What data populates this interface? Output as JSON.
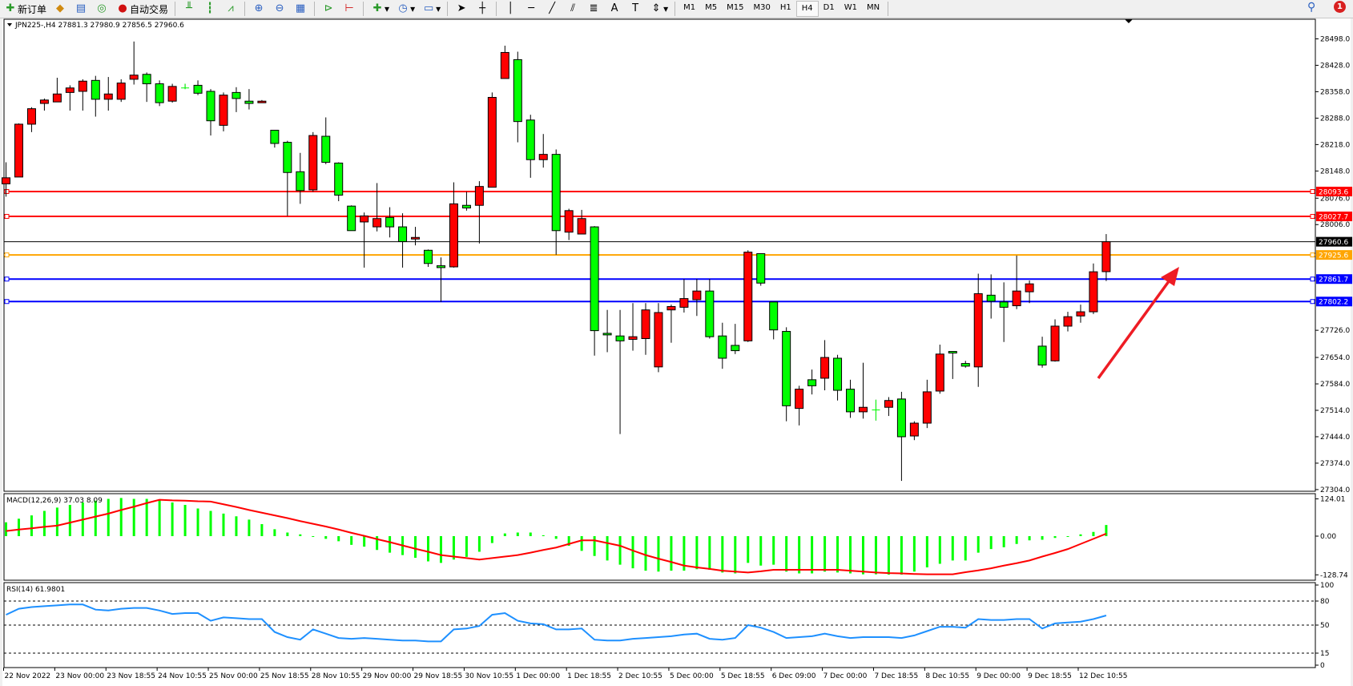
{
  "toolbar": {
    "new_order_label": "新订单",
    "auto_trade_label": "自动交易",
    "timeframes": [
      "M1",
      "M5",
      "M15",
      "M30",
      "H1",
      "H4",
      "D1",
      "W1",
      "MN"
    ],
    "active_timeframe": "H4",
    "notification_count": "1",
    "icons": [
      "new-order-icon",
      "market-watch-icon",
      "data-window-icon",
      "signals-icon",
      "auto-trade-icon",
      "bar-chart-icon",
      "candlestick-icon",
      "line-chart-icon",
      "zoom-in-icon",
      "zoom-out-icon",
      "tile-windows-icon",
      "auto-scroll-icon",
      "chart-shift-icon",
      "indicators-icon",
      "periods-icon",
      "templates-icon",
      "cursor-icon",
      "crosshair-icon",
      "vertical-line-icon",
      "horizontal-line-icon",
      "trendline-icon",
      "equidistant-channel-icon",
      "fibonacci-icon",
      "text-icon",
      "text-label-icon",
      "arrows-icon",
      "search-icon"
    ]
  },
  "chart": {
    "title": "JPN225-,H4  27881.3 27980.9 27856.5 27960.6",
    "colors": {
      "bull": "#ff0000",
      "bear": "#00ff00",
      "background": "#ffffff",
      "wick": "#000000"
    },
    "price_ticks": [
      "28498.0",
      "28428.0",
      "28358.0",
      "28288.0",
      "28218.0",
      "28148.0",
      "28076.0",
      "28006.0",
      "27726.0",
      "27654.0",
      "27584.0",
      "27514.0",
      "27444.0",
      "27374.0",
      "27304.0"
    ],
    "price_lines": [
      {
        "price": 28093.6,
        "label": "28093.6",
        "color": "#ff0000"
      },
      {
        "price": 28027.7,
        "label": "28027.7",
        "color": "#ff0000"
      },
      {
        "price": 27960.6,
        "label": "27960.6",
        "color": "#000000"
      },
      {
        "price": 27925.6,
        "label": "27925.6",
        "color": "#ffa500"
      },
      {
        "price": 27861.7,
        "label": "27861.7",
        "color": "#0000ff"
      },
      {
        "price": 27802.2,
        "label": "27802.2",
        "color": "#0000ff"
      }
    ],
    "arrow_color": "#ee1c24",
    "time_labels": [
      "22 Nov 2022",
      "23 Nov 00:00",
      "23 Nov 18:55",
      "24 Nov 10:55",
      "25 Nov 00:00",
      "25 Nov 18:55",
      "28 Nov 10:55",
      "29 Nov 00:00",
      "29 Nov 18:55",
      "30 Nov 10:55",
      "1 Dec 00:00",
      "1 Dec 18:55",
      "2 Dec 10:55",
      "5 Dec 00:00",
      "5 Dec 18:55",
      "6 Dec 09:00",
      "7 Dec 00:00",
      "7 Dec 18:55",
      "8 Dec 10:55",
      "9 Dec 00:00",
      "9 Dec 18:55",
      "12 Dec 10:55"
    ]
  },
  "chart_data": [
    {
      "type": "candlestick",
      "symbol": "JPN225-",
      "timeframe": "H4",
      "ylim": [
        27304,
        28498
      ],
      "ohlc": [
        [
          28114,
          28171,
          28080,
          28130
        ],
        [
          28132,
          28274,
          28132,
          28272
        ],
        [
          28272,
          28317,
          28251,
          28313
        ],
        [
          28327,
          28340,
          28308,
          28336
        ],
        [
          28331,
          28395,
          28331,
          28352
        ],
        [
          28356,
          28375,
          28308,
          28368
        ],
        [
          28359,
          28391,
          28308,
          28386
        ],
        [
          28388,
          28400,
          28292,
          28338
        ],
        [
          28338,
          28397,
          28308,
          28352
        ],
        [
          28338,
          28391,
          28331,
          28381
        ],
        [
          28391,
          28491,
          28377,
          28402
        ],
        [
          28404,
          28409,
          28331,
          28379
        ],
        [
          28379,
          28388,
          28320,
          28329
        ],
        [
          28333,
          28379,
          28329,
          28372
        ],
        [
          28368,
          28379,
          28365,
          28368
        ],
        [
          28375,
          28388,
          28349,
          28354
        ],
        [
          28359,
          28365,
          28242,
          28281
        ],
        [
          28269,
          28356,
          28253,
          28349
        ],
        [
          28356,
          28370,
          28304,
          28340
        ],
        [
          28333,
          28365,
          28311,
          28327
        ],
        [
          28329,
          28336,
          28329,
          28333
        ],
        [
          28256,
          28256,
          28210,
          28221
        ],
        [
          28224,
          28228,
          28029,
          28144
        ],
        [
          28146,
          28196,
          28061,
          28096
        ],
        [
          28098,
          28251,
          28093,
          28242
        ],
        [
          28240,
          28290,
          28166,
          28171
        ],
        [
          28169,
          28171,
          28068,
          28084
        ],
        [
          28055,
          28057,
          27990,
          27990
        ],
        [
          28013,
          28038,
          27892,
          28029
        ],
        [
          28000,
          28116,
          27988,
          28022
        ],
        [
          28025,
          28052,
          27972,
          28000
        ],
        [
          28000,
          28036,
          27892,
          27961
        ],
        [
          27968,
          28000,
          27951,
          27972
        ],
        [
          27938,
          27940,
          27894,
          27903
        ],
        [
          27897,
          27919,
          27801,
          27892
        ],
        [
          27894,
          28118,
          27892,
          28061
        ],
        [
          28057,
          28093,
          28043,
          28050
        ],
        [
          28057,
          28121,
          27956,
          28107
        ],
        [
          28105,
          28356,
          28105,
          28343
        ],
        [
          28393,
          28480,
          28393,
          28462
        ],
        [
          28443,
          28464,
          28224,
          28279
        ],
        [
          28283,
          28297,
          28130,
          28178
        ],
        [
          28178,
          28246,
          28157,
          28192
        ],
        [
          28192,
          28205,
          27926,
          27990
        ],
        [
          27986,
          28048,
          27965,
          28043
        ],
        [
          27981,
          28045,
          27981,
          28022
        ],
        [
          28000,
          28002,
          27659,
          27725
        ],
        [
          27718,
          27780,
          27668,
          27714
        ],
        [
          27711,
          27780,
          27451,
          27698
        ],
        [
          27702,
          27798,
          27672,
          27709
        ],
        [
          27704,
          27798,
          27661,
          27780
        ],
        [
          27629,
          27798,
          27615,
          27773
        ],
        [
          27780,
          27794,
          27693,
          27789
        ],
        [
          27787,
          27862,
          27773,
          27810
        ],
        [
          27807,
          27862,
          27764,
          27830
        ],
        [
          27830,
          27862,
          27704,
          27709
        ],
        [
          27711,
          27746,
          27624,
          27652
        ],
        [
          27686,
          27743,
          27663,
          27672
        ],
        [
          27698,
          27938,
          27695,
          27933
        ],
        [
          27929,
          27929,
          27844,
          27851
        ],
        [
          27801,
          27801,
          27702,
          27727
        ],
        [
          27723,
          27734,
          27485,
          27526
        ],
        [
          27519,
          27579,
          27474,
          27570
        ],
        [
          27595,
          27622,
          27556,
          27579
        ],
        [
          27599,
          27700,
          27567,
          27654
        ],
        [
          27652,
          27661,
          27540,
          27567
        ],
        [
          27570,
          27595,
          27494,
          27510
        ],
        [
          27510,
          27640,
          27492,
          27522
        ],
        [
          27515,
          27542,
          27487,
          27515
        ],
        [
          27522,
          27549,
          27499,
          27540
        ],
        [
          27544,
          27563,
          27327,
          27444
        ],
        [
          27446,
          27485,
          27435,
          27480
        ],
        [
          27480,
          27595,
          27467,
          27563
        ],
        [
          27565,
          27688,
          27558,
          27663
        ],
        [
          27670,
          27670,
          27597,
          27666
        ],
        [
          27638,
          27645,
          27627,
          27631
        ],
        [
          27629,
          27876,
          27576,
          27823
        ],
        [
          27819,
          27874,
          27757,
          27803
        ],
        [
          27801,
          27853,
          27695,
          27787
        ],
        [
          27791,
          27924,
          27782,
          27830
        ],
        [
          27828,
          27858,
          27798,
          27849
        ],
        [
          27684,
          27709,
          27627,
          27634
        ],
        [
          27645,
          27755,
          27643,
          27737
        ],
        [
          27737,
          27775,
          27723,
          27762
        ],
        [
          27764,
          27794,
          27746,
          27775
        ],
        [
          27775,
          27903,
          27769,
          27881
        ],
        [
          27881.3,
          27980.9,
          27856.5,
          27960.6
        ]
      ]
    },
    {
      "type": "bar",
      "label": "MACD(12,26,9) 37.03 8.09",
      "ylim": [
        -128.74,
        124.01
      ],
      "ticks": [
        "124.01",
        "0.00",
        "-128.74"
      ],
      "histogram_color": "#00ff00",
      "signal_color": "#ff0000",
      "histogram": [
        46,
        58,
        69,
        84,
        95,
        104,
        112,
        118,
        124,
        127,
        124,
        124,
        121,
        112,
        104,
        92,
        84,
        75,
        66,
        55,
        40,
        23,
        12,
        6,
        0,
        -9,
        -17,
        -29,
        -35,
        -46,
        -55,
        -63,
        -72,
        -84,
        -89,
        -78,
        -69,
        -52,
        -23,
        9,
        12,
        12,
        3,
        -9,
        -32,
        -49,
        -66,
        -81,
        -95,
        -107,
        -115,
        -118,
        -115,
        -115,
        -110,
        -112,
        -121,
        -124,
        -89,
        -98,
        -95,
        -118,
        -124,
        -124,
        -118,
        -121,
        -124,
        -127,
        -127,
        -128,
        -128,
        -118,
        -104,
        -92,
        -81,
        -81,
        -55,
        -43,
        -37,
        -26,
        -14,
        -12,
        -6,
        0,
        6,
        14,
        37.03
      ],
      "signal": [
        17,
        22,
        26,
        31,
        35,
        45,
        55,
        65,
        75,
        87,
        98,
        110,
        121,
        119,
        118,
        116,
        115,
        106,
        97,
        87,
        78,
        69,
        60,
        50,
        41,
        32,
        22,
        11,
        1,
        -10,
        -20,
        -31,
        -42,
        -52,
        -63,
        -68,
        -73,
        -78,
        -73,
        -68,
        -63,
        -55,
        -46,
        -38,
        -26,
        -14,
        -14,
        -23,
        -32,
        -48,
        -63,
        -75,
        -86,
        -98,
        -104,
        -109,
        -115,
        -118,
        -121,
        -117,
        -112,
        -112,
        -112,
        -112,
        -112,
        -112,
        -115,
        -118,
        -121,
        -123,
        -124,
        -126,
        -127,
        -127,
        -127,
        -120,
        -114,
        -107,
        -98,
        -90,
        -81,
        -68,
        -56,
        -43,
        -26,
        -9,
        8.09
      ]
    },
    {
      "type": "line",
      "label": "RSI(14) 61.9801",
      "ylim": [
        0,
        100
      ],
      "ticks": [
        "100",
        "80",
        "50",
        "15",
        "0"
      ],
      "levels": [
        80,
        50,
        15
      ],
      "color": "#1e90ff",
      "values": [
        62.9,
        70.4,
        72.5,
        73.6,
        74.6,
        75.7,
        75.7,
        69.3,
        68.2,
        70.4,
        71.4,
        71.4,
        68.2,
        63.9,
        65,
        65,
        55.4,
        59.6,
        58.6,
        57.5,
        57.5,
        41.4,
        35,
        31.8,
        44.6,
        39.3,
        33.9,
        32.9,
        33.9,
        32.9,
        31.8,
        30.7,
        30.7,
        29.6,
        29.6,
        44.6,
        45.7,
        48.9,
        62.9,
        65,
        55.4,
        52.1,
        51.1,
        44.6,
        44.6,
        45.7,
        31.8,
        30.7,
        30.7,
        32.9,
        33.9,
        35,
        36.1,
        38.2,
        39.3,
        32.9,
        31.8,
        33.9,
        50,
        46.8,
        41.4,
        33.9,
        35,
        36.1,
        39.3,
        36.1,
        33.9,
        35,
        35,
        35,
        33.9,
        37.1,
        42.5,
        47.9,
        47.9,
        46.8,
        57.5,
        56.4,
        56.4,
        57.5,
        57.5,
        45.7,
        52.1,
        53.2,
        54.3,
        57.5,
        61.98
      ]
    }
  ]
}
